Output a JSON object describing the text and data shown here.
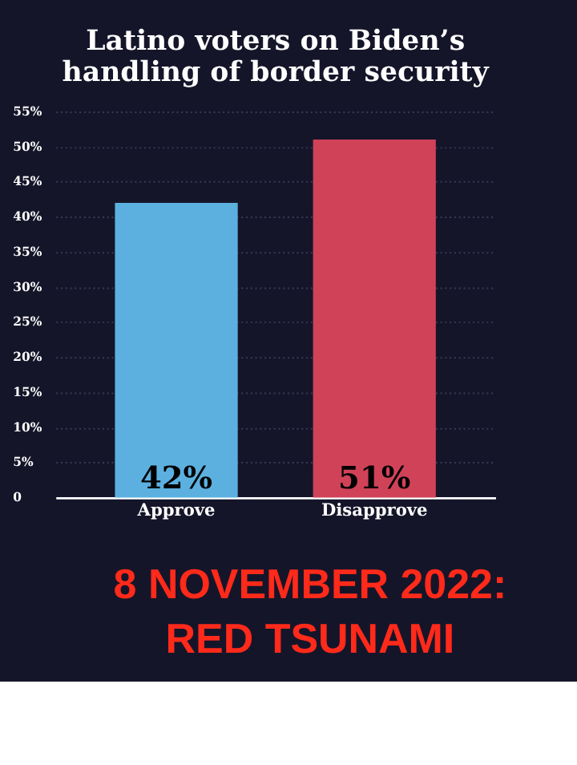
{
  "chart_data": {
    "type": "bar",
    "title": "Latino voters on Biden’s handling of border security",
    "categories": [
      "Approve",
      "Disapprove"
    ],
    "values": [
      42,
      51
    ],
    "colors": [
      "#5cb0e0",
      "#d04258"
    ],
    "value_labels": [
      "42%",
      "51%"
    ],
    "ylim": [
      0,
      55
    ],
    "yticks": [
      0,
      {
        "value": 5,
        "label": "5%"
      },
      {
        "value": 10,
        "label": "10%"
      },
      {
        "value": 15,
        "label": "15%"
      },
      {
        "value": 20,
        "label": "20%"
      },
      {
        "value": 25,
        "label": "25%"
      },
      {
        "value": 30,
        "label": "30%"
      },
      {
        "value": 35,
        "label": "35%"
      },
      {
        "value": 40,
        "label": "40%"
      },
      {
        "value": 45,
        "label": "45%"
      },
      {
        "value": 50,
        "label": "50%"
      },
      {
        "value": 55,
        "label": "55%"
      }
    ],
    "grid": "y",
    "annotations": [
      "8 NOVEMBER 2022:",
      "RED TSUNAMI"
    ]
  }
}
